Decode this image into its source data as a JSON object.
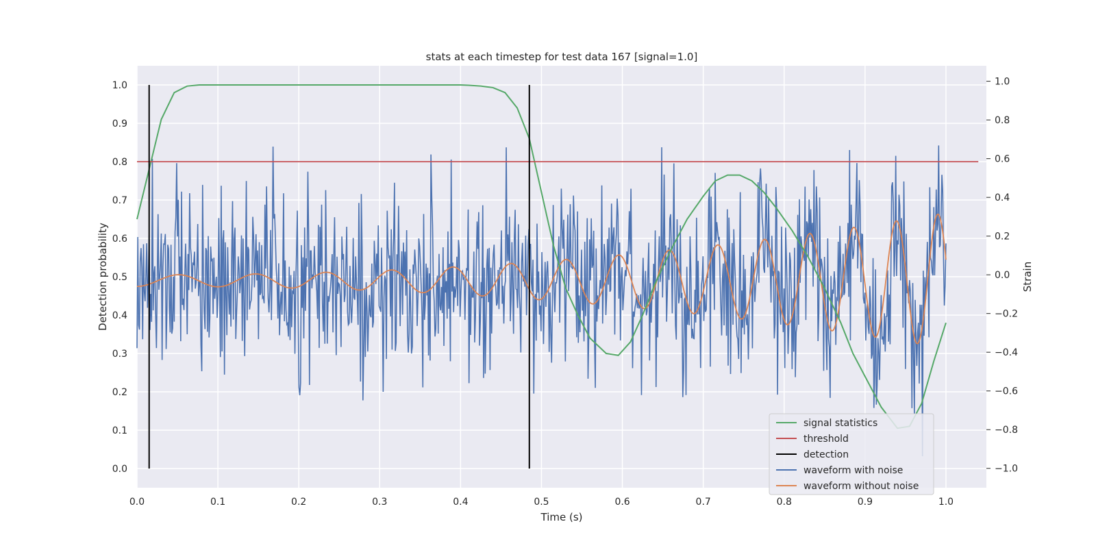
{
  "chart_data": {
    "type": "line",
    "title": "stats at each timestep for test data 167 [signal=1.0]",
    "xlabel": "Time (s)",
    "ylabel": "Detection probability",
    "y2label": "Strain",
    "xlim": [
      0.0,
      1.05
    ],
    "ylim": [
      -0.05,
      1.05
    ],
    "y2lim": [
      -1.1,
      1.08
    ],
    "xticks": [
      "0.0",
      "0.1",
      "0.2",
      "0.3",
      "0.4",
      "0.5",
      "0.6",
      "0.7",
      "0.8",
      "0.9",
      "1.0"
    ],
    "yticks": [
      "0.0",
      "0.1",
      "0.2",
      "0.3",
      "0.4",
      "0.5",
      "0.6",
      "0.7",
      "0.8",
      "0.9",
      "1.0"
    ],
    "y2ticks": [
      "−1.0",
      "−0.8",
      "−0.6",
      "−0.4",
      "−0.2",
      "0.0",
      "0.2",
      "0.4",
      "0.6",
      "0.8",
      "1.0"
    ],
    "grid": true,
    "legend_position": "bottom-right",
    "colors": {
      "signal": "#55a868",
      "threshold": "#c44e52",
      "detection": "#000000",
      "noisy": "#4c72b0",
      "clean": "#dd8452",
      "plot_bg": "#eaeaf2",
      "grid": "#ffffff"
    },
    "series": [
      {
        "name": "signal statistics",
        "axis": "left",
        "x": [
          0.0,
          0.015,
          0.03,
          0.046,
          0.062,
          0.077,
          0.093,
          0.108,
          0.15,
          0.2,
          0.3,
          0.4,
          0.41,
          0.425,
          0.44,
          0.455,
          0.47,
          0.485,
          0.5,
          0.515,
          0.53,
          0.545,
          0.56,
          0.58,
          0.595,
          0.61,
          0.625,
          0.64,
          0.66,
          0.68,
          0.7,
          0.715,
          0.73,
          0.745,
          0.76,
          0.775,
          0.79,
          0.81,
          0.83,
          0.85,
          0.87,
          0.885,
          0.9,
          0.92,
          0.94,
          0.955,
          0.97,
          0.985,
          1.0
        ],
        "y": [
          0.65,
          0.78,
          0.91,
          0.98,
          0.997,
          1.0,
          1.0,
          1.0,
          1.0,
          1.0,
          1.0,
          1.0,
          0.999,
          0.997,
          0.993,
          0.98,
          0.94,
          0.86,
          0.72,
          0.58,
          0.47,
          0.4,
          0.34,
          0.3,
          0.295,
          0.33,
          0.4,
          0.48,
          0.57,
          0.65,
          0.71,
          0.75,
          0.765,
          0.765,
          0.75,
          0.72,
          0.68,
          0.62,
          0.55,
          0.47,
          0.38,
          0.3,
          0.24,
          0.16,
          0.105,
          0.11,
          0.17,
          0.28,
          0.38
        ]
      },
      {
        "name": "threshold",
        "axis": "left",
        "x": [
          0.0,
          1.04
        ],
        "y": [
          0.8,
          0.8
        ]
      },
      {
        "name": "detection",
        "axis": "left",
        "type": "vline",
        "x": [
          0.015,
          0.485
        ],
        "y": [
          0.0,
          1.0
        ]
      },
      {
        "name": "waveform with noise",
        "axis": "right",
        "type": "noisy-line",
        "x_range": [
          0.0,
          1.0
        ],
        "points": 1000,
        "y_range": [
          -1.0,
          1.0
        ]
      },
      {
        "name": "waveform without noise",
        "axis": "right",
        "type": "chirp",
        "x_range": [
          0.0,
          1.0
        ],
        "start_amplitude": 0.03,
        "end_amplitude": 0.35,
        "offset": -0.03
      }
    ]
  }
}
